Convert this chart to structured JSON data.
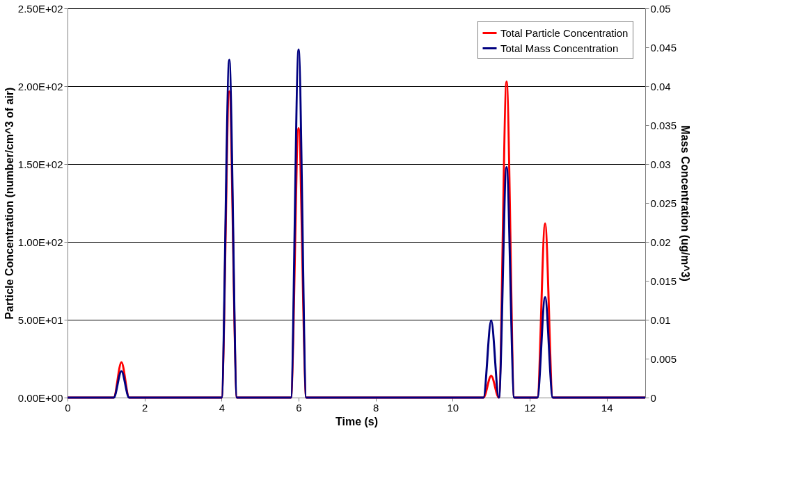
{
  "chart_data": {
    "type": "line",
    "xlabel": "Time (s)",
    "ylabel": "Particle Concentration (number/cm^3 of air)",
    "y2label": "Mass Concentration (ug/m^3)",
    "x": [
      0,
      1.2,
      1.4,
      1.6,
      4.0,
      4.2,
      4.4,
      5.8,
      6.0,
      6.2,
      10.8,
      11.0,
      11.2,
      11.4,
      11.6,
      12.2,
      12.4,
      12.6,
      15
    ],
    "series": [
      {
        "name": "Total Particle Concentration",
        "color": "#ff0000",
        "values": [
          0,
          0,
          22.7,
          0,
          0,
          196.6,
          0,
          0,
          173,
          0,
          0,
          13.9,
          0,
          203,
          0,
          0,
          111.8,
          0,
          0
        ]
      },
      {
        "name": "Total Mass Concentration",
        "color": "#000080",
        "axis": "y2",
        "values": [
          0,
          0,
          0.0034,
          0,
          0,
          0.0434,
          0,
          0,
          0.0447,
          0,
          0,
          0.0099,
          0,
          0.0296,
          0,
          0,
          0.0129,
          0,
          0
        ]
      }
    ],
    "xlim": [
      0,
      15
    ],
    "xticks": [
      0,
      2,
      4,
      6,
      8,
      10,
      12,
      14
    ],
    "ylim": [
      0,
      250
    ],
    "yticks": [
      {
        "value": 0,
        "label": "0.00E+00"
      },
      {
        "value": 50,
        "label": "5.00E+01"
      },
      {
        "value": 100,
        "label": "1.00E+02"
      },
      {
        "value": 150,
        "label": "1.50E+02"
      },
      {
        "value": 200,
        "label": "2.00E+02"
      },
      {
        "value": 250,
        "label": "2.50E+02"
      }
    ],
    "y2lim": [
      0,
      0.05
    ],
    "y2ticks": [
      0,
      0.005,
      0.01,
      0.015,
      0.02,
      0.025,
      0.03,
      0.035,
      0.04,
      0.045,
      0.05
    ],
    "grid": "y",
    "legend": "top right",
    "marker": "none",
    "line_style": "solid"
  }
}
